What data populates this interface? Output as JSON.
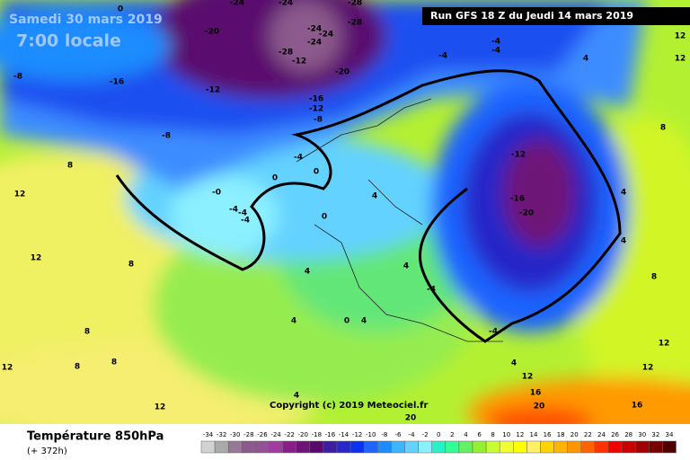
{
  "header": {
    "date": "Samedi 30 mars 2019",
    "time": "7:00 locale",
    "run": "Run GFS 18 Z du Jeudi 14 mars 2019"
  },
  "copyright": "Copyright (c) 2019 Meteociel.fr",
  "footer": {
    "title": "Température 850hPa",
    "lead": "(+ 372h)"
  },
  "legend": {
    "labels": [
      -34,
      -32,
      -30,
      -28,
      -26,
      -24,
      -22,
      -20,
      -18,
      -16,
      -14,
      -12,
      -10,
      -8,
      -6,
      -4,
      -2,
      0,
      2,
      4,
      6,
      8,
      10,
      12,
      14,
      16,
      18,
      20,
      22,
      24,
      26,
      28,
      30,
      32,
      34
    ],
    "colors": [
      "#d2d2d2",
      "#aaaaaa",
      "#967896",
      "#8c5a8c",
      "#965096",
      "#a03ca0",
      "#8c1e8c",
      "#6e1478",
      "#5a0a6e",
      "#3c1ea0",
      "#2828c8",
      "#0a32f0",
      "#1e64ff",
      "#1e8cff",
      "#3cb4ff",
      "#64d2ff",
      "#8cf0ff",
      "#28f0c8",
      "#32ff96",
      "#64f064",
      "#96f032",
      "#c8ff32",
      "#f0ff32",
      "#ffff00",
      "#fff064",
      "#ffd200",
      "#ffb400",
      "#ff9600",
      "#ff6400",
      "#ff3200",
      "#f00000",
      "#c80000",
      "#a00000",
      "#780000",
      "#500000"
    ]
  },
  "map_labels": [
    "-24",
    "-24",
    "-28",
    "-20",
    "-28",
    "-24",
    "-24",
    "-24",
    "-28",
    "-12",
    "-20",
    "-16",
    "-12",
    "-8",
    "-12",
    "-16",
    "-8",
    "-8",
    "0",
    "-4",
    "-4",
    "-4",
    "-4",
    "0",
    "0",
    "-0",
    "-4",
    "-4",
    "-4",
    "0",
    "-12",
    "-16",
    "-20",
    "4",
    "4",
    "4",
    "4",
    "-4",
    "4",
    "4",
    "0",
    "4",
    "-4",
    "4",
    "8",
    "12",
    "12",
    "8",
    "8",
    "8",
    "12",
    "8",
    "12",
    "4",
    "8",
    "12",
    "12",
    "16",
    "20",
    "16",
    "20",
    "12",
    "12",
    "12",
    "8",
    "4"
  ]
}
